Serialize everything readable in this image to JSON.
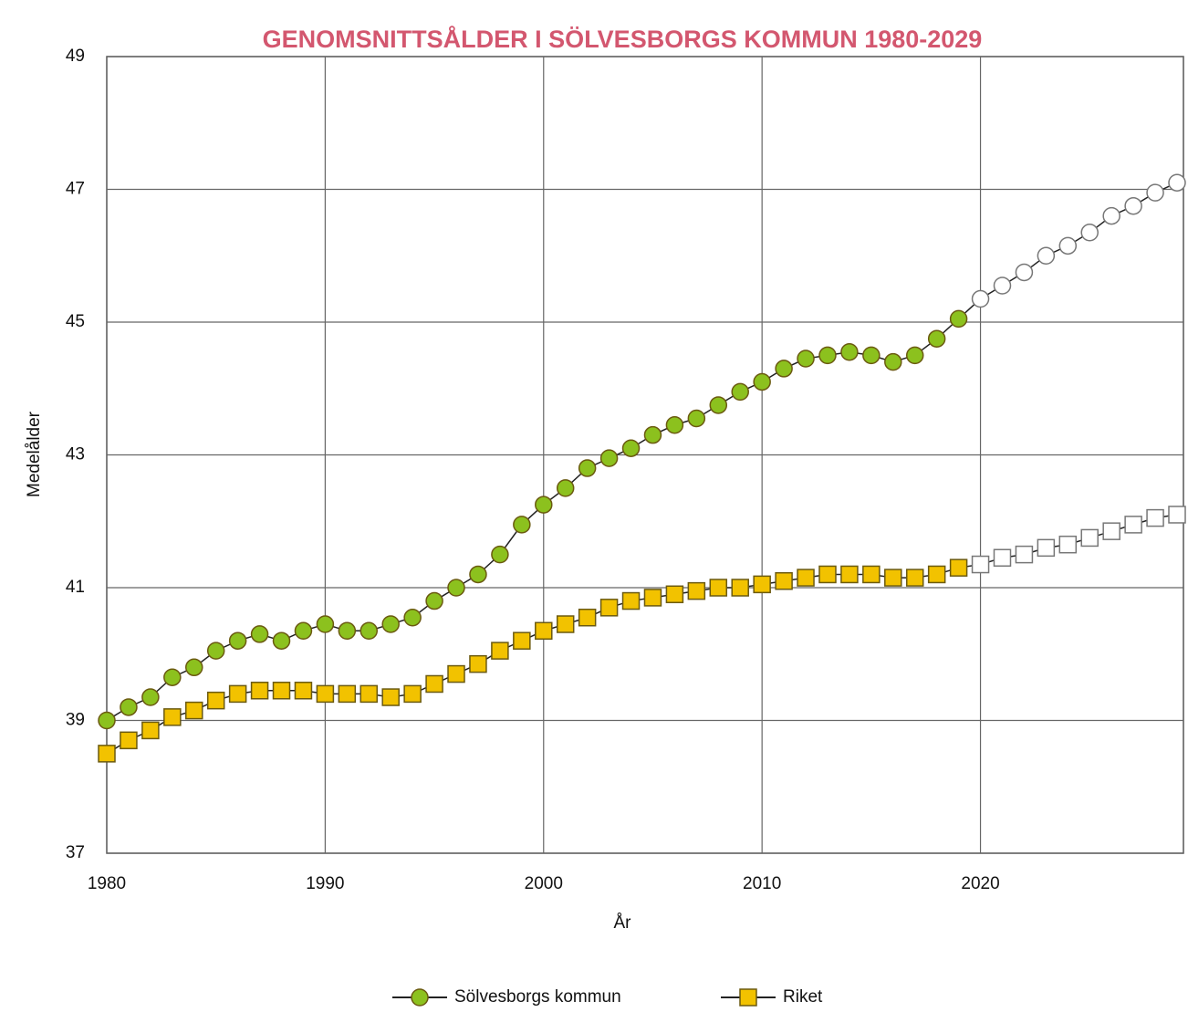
{
  "chart_data": {
    "type": "line",
    "title": "GENOMSNITTSÅLDER I SÖLVESBORGS KOMMUN 1980-2029",
    "xlabel": "År",
    "ylabel": "Medelålder",
    "x": [
      1980,
      1981,
      1982,
      1983,
      1984,
      1985,
      1986,
      1987,
      1988,
      1989,
      1990,
      1991,
      1992,
      1993,
      1994,
      1995,
      1996,
      1997,
      1998,
      1999,
      2000,
      2001,
      2002,
      2003,
      2004,
      2005,
      2006,
      2007,
      2008,
      2009,
      2010,
      2011,
      2012,
      2013,
      2014,
      2015,
      2016,
      2017,
      2018,
      2019,
      2020,
      2021,
      2022,
      2023,
      2024,
      2025,
      2026,
      2027,
      2028,
      2029
    ],
    "series": [
      {
        "name": "Sölvesborgs kommun",
        "color": "#8cc11e",
        "marker": "circle",
        "values": [
          39.0,
          39.2,
          39.35,
          39.65,
          39.8,
          40.05,
          40.2,
          40.3,
          40.2,
          40.35,
          40.45,
          40.35,
          40.35,
          40.45,
          40.55,
          40.8,
          41.0,
          41.2,
          41.5,
          41.95,
          42.25,
          42.5,
          42.8,
          42.95,
          43.1,
          43.3,
          43.45,
          43.55,
          43.75,
          43.95,
          44.1,
          44.3,
          44.45,
          44.5,
          44.55,
          44.5,
          44.4,
          44.5,
          44.75,
          45.05,
          45.35,
          45.55,
          45.75,
          46.0,
          46.15,
          46.35,
          46.6,
          46.75,
          46.95,
          47.1
        ]
      },
      {
        "name": "Riket",
        "color": "#f2c200",
        "marker": "square",
        "values": [
          38.5,
          38.7,
          38.85,
          39.05,
          39.15,
          39.3,
          39.4,
          39.45,
          39.45,
          39.45,
          39.4,
          39.4,
          39.4,
          39.35,
          39.4,
          39.55,
          39.7,
          39.85,
          40.05,
          40.2,
          40.35,
          40.45,
          40.55,
          40.7,
          40.8,
          40.85,
          40.9,
          40.95,
          41.0,
          41.0,
          41.05,
          41.1,
          41.15,
          41.2,
          41.2,
          41.2,
          41.15,
          41.15,
          41.2,
          41.3,
          41.35,
          41.45,
          41.5,
          41.6,
          41.65,
          41.75,
          41.85,
          41.95,
          42.05,
          42.1
        ]
      }
    ],
    "projection_start": 2020,
    "xlim": [
      1980,
      2029
    ],
    "xticks": [
      1980,
      1990,
      2000,
      2010,
      2020
    ],
    "ylim": [
      37,
      49
    ],
    "yticks": [
      37,
      39,
      41,
      43,
      45,
      47,
      49
    ],
    "grid": true,
    "legend": "bottom"
  }
}
